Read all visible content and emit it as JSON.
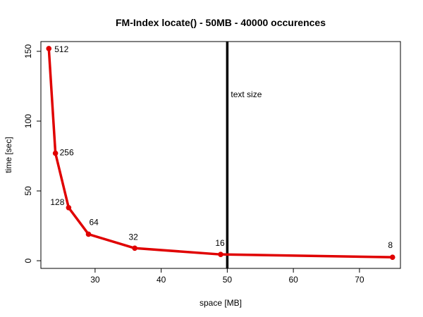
{
  "chart_data": {
    "type": "line",
    "title": "FM-Index locate() - 50MB - 40000 occurences",
    "xlabel": "space [MB]",
    "ylabel": "time [sec]",
    "xlim": [
      21.8,
      76.2
    ],
    "ylim": [
      -5.5,
      157
    ],
    "x_ticks": [
      30,
      40,
      50,
      60,
      70
    ],
    "y_ticks": [
      0,
      50,
      100,
      150
    ],
    "grid": false,
    "series": [
      {
        "color": "#e00000",
        "points": [
          {
            "x": 23,
            "y": 152,
            "label": "512"
          },
          {
            "x": 24,
            "y": 77,
            "label": "256"
          },
          {
            "x": 26,
            "y": 38,
            "label": "128"
          },
          {
            "x": 29,
            "y": 19,
            "label": "64"
          },
          {
            "x": 36,
            "y": 9,
            "label": "32"
          },
          {
            "x": 49,
            "y": 4.5,
            "label": "16"
          },
          {
            "x": 75,
            "y": 2.5,
            "label": "8"
          }
        ]
      }
    ],
    "annotations": [
      {
        "type": "vline",
        "x": 50,
        "color": "#000000",
        "text": "text size"
      }
    ]
  }
}
